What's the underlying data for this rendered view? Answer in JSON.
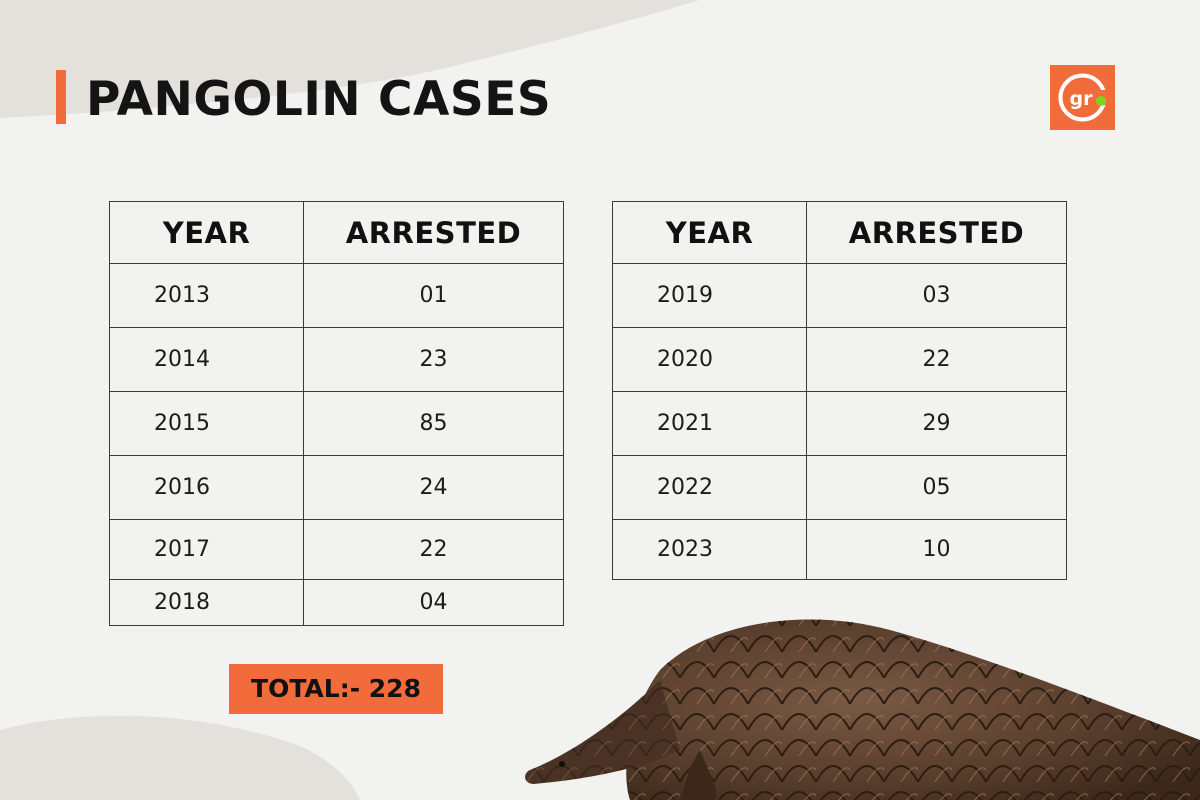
{
  "title": "PANGOLIN CASES",
  "logo": {
    "text": "gr",
    "icon": "gr-logo-icon"
  },
  "tables": [
    {
      "headers": [
        "YEAR",
        "ARRESTED"
      ],
      "rows": [
        {
          "year": "2013",
          "arrested": "01"
        },
        {
          "year": "2014",
          "arrested": "23"
        },
        {
          "year": "2015",
          "arrested": "85"
        },
        {
          "year": "2016",
          "arrested": "24"
        },
        {
          "year": "2017",
          "arrested": "22"
        },
        {
          "year": "2018",
          "arrested": "04"
        }
      ]
    },
    {
      "headers": [
        "YEAR",
        "ARRESTED"
      ],
      "rows": [
        {
          "year": "2019",
          "arrested": "03"
        },
        {
          "year": "2020",
          "arrested": "22"
        },
        {
          "year": "2021",
          "arrested": "29"
        },
        {
          "year": "2022",
          "arrested": "05"
        },
        {
          "year": "2023",
          "arrested": "10"
        }
      ]
    }
  ],
  "total": "TOTAL:- 228",
  "colors": {
    "accent": "#f26b3a",
    "background": "#f2f2f1",
    "logo_dot": "#7ed321"
  }
}
